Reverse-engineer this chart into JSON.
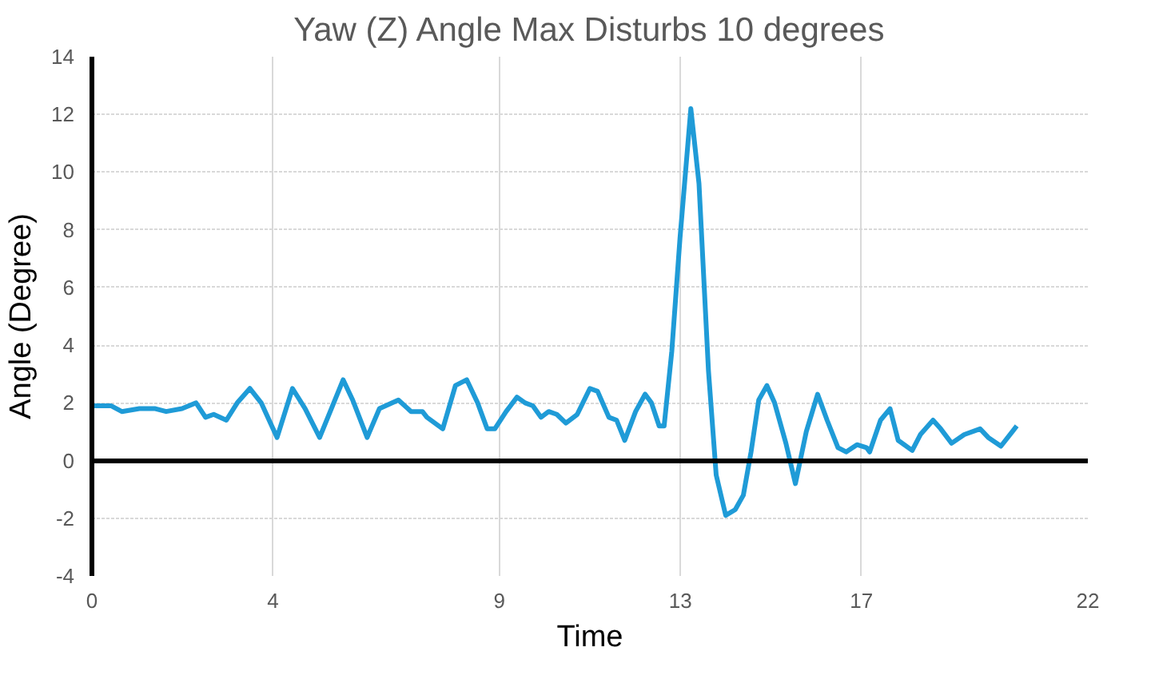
{
  "chart_data": {
    "type": "line",
    "title": "Yaw (Z) Angle Max Disturbs 10 degrees",
    "xlabel": "Time",
    "ylabel": "Angle (Degree)",
    "xlim": [
      0,
      22
    ],
    "xticks": [
      0,
      4,
      9,
      13,
      17,
      22
    ],
    "ylim": [
      -4,
      14
    ],
    "yticks": [
      -4,
      -2,
      0,
      2,
      4,
      6,
      8,
      10,
      12,
      14
    ],
    "grid": true,
    "marker": "none",
    "line_style": "solid",
    "series": [
      {
        "color": "#1f9bd7",
        "x": [
          0.03,
          0.42,
          0.66,
          1.05,
          1.4,
          1.64,
          1.99,
          2.3,
          2.51,
          2.69,
          2.97,
          3.21,
          3.49,
          3.74,
          4.09,
          4.43,
          4.71,
          5.03,
          5.55,
          5.76,
          6.08,
          6.35,
          6.77,
          7.05,
          7.3,
          7.4,
          7.75,
          8.03,
          8.28,
          8.52,
          8.73,
          8.9,
          9.15,
          9.39,
          9.57,
          9.74,
          9.92,
          10.09,
          10.27,
          10.47,
          10.72,
          11.0,
          11.17,
          11.42,
          11.59,
          11.77,
          12.01,
          12.22,
          12.36,
          12.53,
          12.64,
          12.81,
          12.99,
          13.23,
          13.41,
          13.62,
          13.79,
          14.0,
          14.21,
          14.39,
          14.56,
          14.73,
          14.91,
          15.08,
          15.33,
          15.54,
          15.78,
          16.03,
          16.24,
          16.48,
          16.66,
          16.9,
          17.11,
          17.18,
          17.42,
          17.63,
          17.81,
          18.12,
          18.3,
          18.58,
          18.75,
          18.99,
          19.27,
          19.62,
          19.8,
          20.08,
          20.43
        ],
        "values": [
          1.9,
          1.9,
          1.7,
          1.8,
          1.8,
          1.7,
          1.8,
          2.0,
          1.5,
          1.6,
          1.4,
          2.0,
          2.5,
          2.0,
          0.8,
          2.5,
          1.8,
          0.8,
          2.8,
          2.1,
          0.8,
          1.8,
          2.1,
          1.7,
          1.7,
          1.5,
          1.1,
          2.6,
          2.8,
          2.0,
          1.1,
          1.1,
          1.7,
          2.2,
          2.0,
          1.9,
          1.5,
          1.7,
          1.6,
          1.3,
          1.6,
          2.5,
          2.4,
          1.5,
          1.4,
          0.7,
          1.7,
          2.3,
          2.0,
          1.2,
          1.2,
          3.8,
          7.7,
          12.2,
          9.6,
          3.1,
          -0.5,
          -1.9,
          -1.7,
          -1.2,
          0.3,
          2.1,
          2.6,
          2.0,
          0.6,
          -0.8,
          1.0,
          2.3,
          1.4,
          0.45,
          0.3,
          0.55,
          0.45,
          0.3,
          1.4,
          1.8,
          0.7,
          0.35,
          0.9,
          1.4,
          1.1,
          0.6,
          0.9,
          1.1,
          0.8,
          0.5,
          1.2
        ]
      }
    ]
  }
}
